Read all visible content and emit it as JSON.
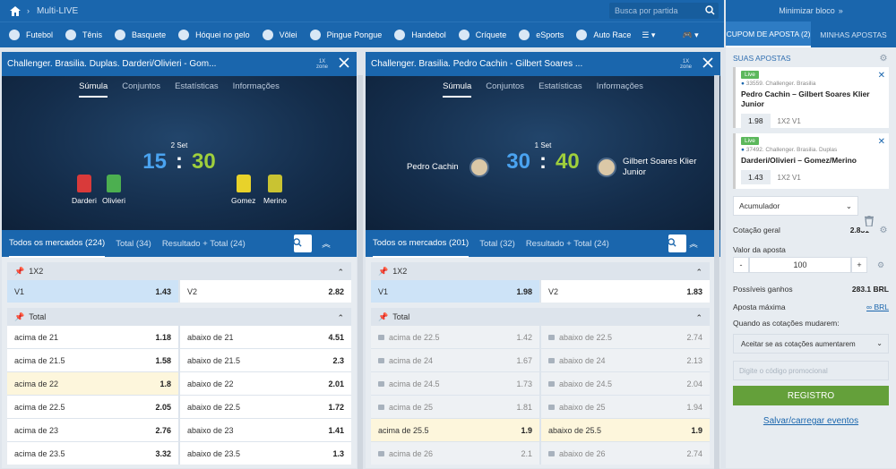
{
  "topbar": {
    "crumb": "Multi-LIVE",
    "search_placeholder": "Busca por partida"
  },
  "sports": [
    "Futebol",
    "Tênis",
    "Basquete",
    "Hóquei no gelo",
    "Vôlei",
    "Pingue Pongue",
    "Handebol",
    "Críquete",
    "eSports",
    "Auto Race"
  ],
  "right_top": "Minimizar bloco",
  "panel1": {
    "title": "Challenger. Brasilia. Duplas. Darderi/Olivieri - Gom...",
    "zone": "1X",
    "zone2": "zone",
    "tabs": [
      "Súmula",
      "Conjuntos",
      "Estatísticas",
      "Informações"
    ],
    "set": "2 Set",
    "score_a": "15",
    "score_b": "30",
    "sep": ":",
    "players": [
      "Darderi",
      "Olivieri",
      "Gomez",
      "Merino"
    ],
    "mtabs": [
      "Todos os mercados (224)",
      "Total (34)",
      "Resultado + Total (24)"
    ],
    "g1": "1X2",
    "v1": "V1",
    "v1o": "1.43",
    "v2": "V2",
    "v2o": "2.82",
    "g2": "Total",
    "rows": [
      [
        "acima de 21",
        "1.18",
        "abaixo de 21",
        "4.51"
      ],
      [
        "acima de 21.5",
        "1.58",
        "abaixo de 21.5",
        "2.3"
      ],
      [
        "acima de 22",
        "1.8",
        "abaixo de 22",
        "2.01"
      ],
      [
        "acima de 22.5",
        "2.05",
        "abaixo de 22.5",
        "1.72"
      ],
      [
        "acima de 23",
        "2.76",
        "abaixo de 23",
        "1.41"
      ],
      [
        "acima de 23.5",
        "3.32",
        "abaixo de 23.5",
        "1.3"
      ]
    ]
  },
  "panel2": {
    "title": "Challenger. Brasilia. Pedro Cachin - Gilbert Soares ...",
    "zone": "1X",
    "zone2": "zone",
    "tabs": [
      "Súmula",
      "Conjuntos",
      "Estatísticas",
      "Informações"
    ],
    "set": "1 Set",
    "score_a": "30",
    "score_b": "40",
    "sep": ":",
    "p1": "Pedro Cachin",
    "p2a": "Gilbert Soares Klier",
    "p2b": "Junior",
    "mtabs": [
      "Todos os mercados (201)",
      "Total (32)",
      "Resultado + Total (24)"
    ],
    "g1": "1X2",
    "v1": "V1",
    "v1o": "1.98",
    "v2": "V2",
    "v2o": "1.83",
    "g2": "Total",
    "rows": [
      [
        "acima de 22.5",
        "1.42",
        "abaixo de 22.5",
        "2.74"
      ],
      [
        "acima de 24",
        "1.67",
        "abaixo de 24",
        "2.13"
      ],
      [
        "acima de 24.5",
        "1.73",
        "abaixo de 24.5",
        "2.04"
      ],
      [
        "acima de 25",
        "1.81",
        "abaixo de 25",
        "1.94"
      ],
      [
        "acima de 25.5",
        "1.9",
        "abaixo de 25.5",
        "1.9"
      ],
      [
        "acima de 26",
        "2.1",
        "abaixo de 26",
        "2.74"
      ]
    ]
  },
  "coupon": {
    "tab1": "CUPOM DE APOSTA (2)",
    "tab2": "MINHAS APOSTAS",
    "suas": "SUAS APOSTAS",
    "live": "Live",
    "bet1": {
      "meta": "33559. Challenger. Brasilia",
      "title": "Pedro Cachin – Gilbert Soares Klier Junior",
      "odd": "1.98",
      "type": "1X2 V1"
    },
    "bet2": {
      "meta": "37492. Challenger. Brasilia. Duplas",
      "title": "Darderi/Olivieri – Gomez/Merino",
      "odd": "1.43",
      "type": "1X2 V1"
    },
    "acc": "Acumulador",
    "cot_label": "Cotação geral",
    "cot": "2.831",
    "valor": "Valor da aposta",
    "minus": "-",
    "amount": "100",
    "plus": "+",
    "gains_label": "Possíveis ganhos",
    "gains": "283.1 BRL",
    "max_label": "Aposta máxima",
    "max": "∞ BRL",
    "change": "Quando as cotações mudarem:",
    "change_opt": "Aceitar se as cotações aumentarem",
    "promo": "Digite o código promocional",
    "register": "REGISTRO",
    "save": "Salvar/carregar eventos"
  }
}
